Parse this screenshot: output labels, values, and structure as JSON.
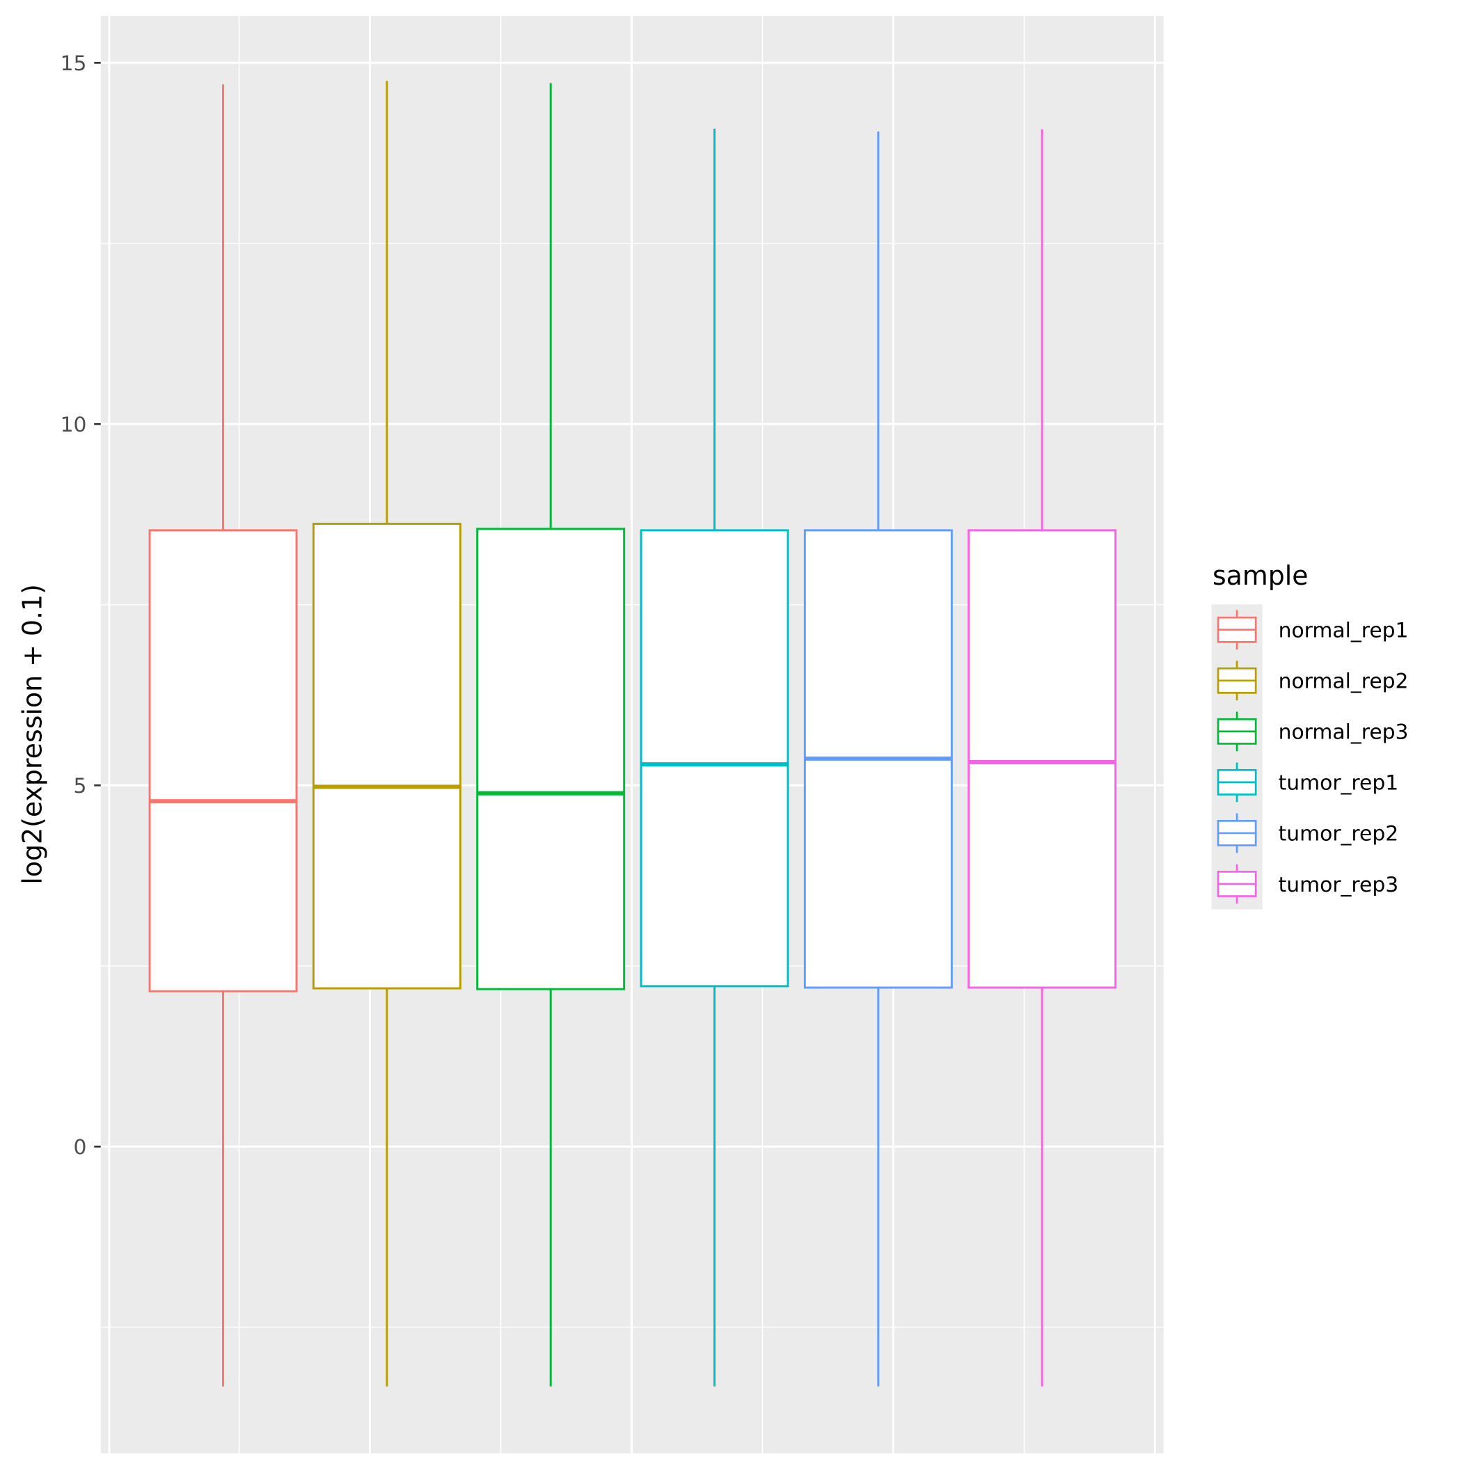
{
  "chart_data": {
    "type": "box",
    "title": "",
    "xlabel": "",
    "ylabel": "log2(expression + 0.1)",
    "ylim": [
      -4.2,
      15.7
    ],
    "yticks": [
      0,
      5,
      10,
      15
    ],
    "ytick_labels": [
      "0",
      "5",
      "10",
      "15"
    ],
    "grid": true,
    "legend": {
      "title": "sample",
      "position": "right"
    },
    "series": [
      {
        "name": "normal_rep1",
        "color": "#F8766D",
        "min": -3.32,
        "q1": 2.15,
        "median": 4.78,
        "q3": 8.53,
        "max": 14.7
      },
      {
        "name": "normal_rep2",
        "color": "#B79F00",
        "min": -3.32,
        "q1": 2.19,
        "median": 4.98,
        "q3": 8.62,
        "max": 14.75
      },
      {
        "name": "normal_rep3",
        "color": "#00BA38",
        "min": -3.32,
        "q1": 2.18,
        "median": 4.89,
        "q3": 8.55,
        "max": 14.72
      },
      {
        "name": "tumor_rep1",
        "color": "#00BFC4",
        "min": -3.32,
        "q1": 2.22,
        "median": 5.29,
        "q3": 8.53,
        "max": 14.09
      },
      {
        "name": "tumor_rep2",
        "color": "#619CFF",
        "min": -3.32,
        "q1": 2.2,
        "median": 5.37,
        "q3": 8.53,
        "max": 14.05
      },
      {
        "name": "tumor_rep3",
        "color": "#F564E3",
        "min": -3.32,
        "q1": 2.2,
        "median": 5.32,
        "q3": 8.53,
        "max": 14.08
      }
    ]
  }
}
